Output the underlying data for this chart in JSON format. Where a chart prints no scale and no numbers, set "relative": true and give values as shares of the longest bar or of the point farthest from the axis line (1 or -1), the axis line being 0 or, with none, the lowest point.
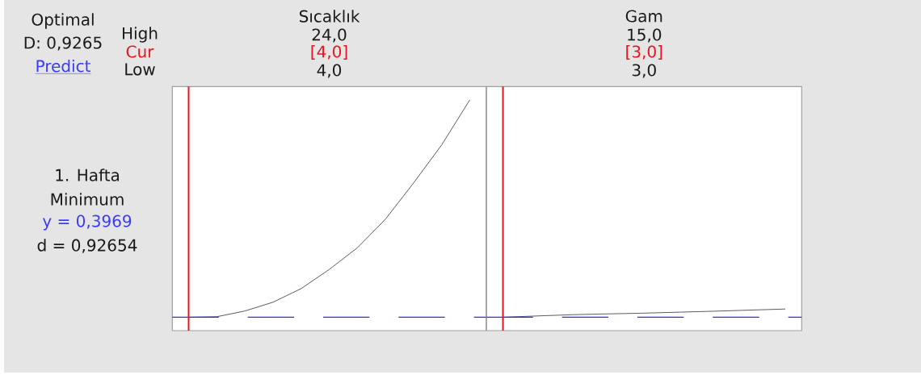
{
  "chart_data": [
    {
      "type": "other",
      "annotations": [
        "Optimal",
        "D: 0,9265",
        "Predict",
        "High",
        "Cur",
        "Low",
        "1. Hafta",
        "Minimum",
        "y = 0,3969",
        "d = 0,92654"
      ]
    },
    {
      "type": "line",
      "title": "Sıcaklık",
      "categories": [
        null,
        null,
        null,
        null,
        null,
        null,
        null,
        null,
        null,
        null,
        null
      ],
      "values": [
        0.058,
        0.06,
        0.085,
        0.123,
        0.182,
        0.265,
        0.359,
        0.483,
        0.64,
        0.805,
        1
      ],
      "color": "#505050",
      "relative": true,
      "annotations": [
        "24,0",
        "[4,0]",
        "4,0"
      ],
      "ref_lines": [
        {
          "axis": "y",
          "value": 0.058,
          "color": "#2b2bff",
          "line_style": "dashed"
        }
      ]
    },
    {
      "type": "line",
      "title": "Gam",
      "categories": [
        null,
        null,
        null,
        null,
        null
      ],
      "values": [
        0.62,
        0.74,
        0.81,
        0.9,
        1
      ],
      "color": "#505050",
      "relative": true,
      "annotations": [
        "15,0",
        "[3,0]",
        "3,0"
      ],
      "ref_lines": [
        {
          "axis": "y",
          "value": 0.62,
          "color": "#2b2bff",
          "line_style": "dashed"
        }
      ]
    }
  ]
}
